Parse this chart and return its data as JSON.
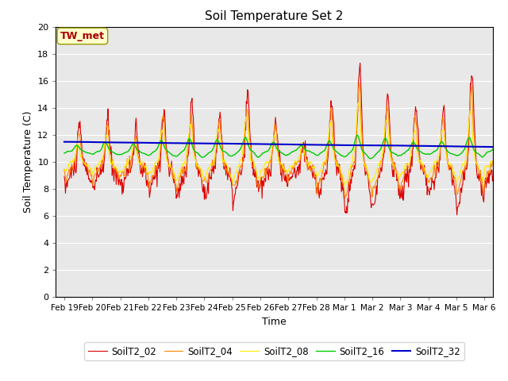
{
  "title": "Soil Temperature Set 2",
  "xlabel": "Time",
  "ylabel": "Soil Temperature (C)",
  "ylim": [
    0,
    20
  ],
  "background_color": "#ffffff",
  "plot_bg_color": "#e8e8e8",
  "annotation_text": "TW_met",
  "annotation_color": "#aa0000",
  "annotation_bg": "#ffffcc",
  "annotation_edge": "#999900",
  "series_colors": {
    "SoilT2_02": "#dd0000",
    "SoilT2_04": "#ff8800",
    "SoilT2_08": "#ffee00",
    "SoilT2_16": "#00cc00",
    "SoilT2_32": "#0000cc"
  },
  "xtick_labels": [
    "Feb 19",
    "Feb 20",
    "Feb 21",
    "Feb 22",
    "Feb 23",
    "Feb 24",
    "Feb 25",
    "Feb 26",
    "Feb 27",
    "Feb 28",
    "Mar 1",
    "Mar 2",
    "Mar 3",
    "Mar 4",
    "Mar 5",
    "Mar 6"
  ],
  "xtick_positions": [
    0,
    1,
    2,
    3,
    4,
    5,
    6,
    7,
    8,
    9,
    10,
    11,
    12,
    13,
    14,
    15
  ],
  "ytick_labels": [
    "0",
    "2",
    "4",
    "6",
    "8",
    "10",
    "12",
    "14",
    "16",
    "18",
    "20"
  ],
  "ytick_positions": [
    0,
    2,
    4,
    6,
    8,
    10,
    12,
    14,
    16,
    18,
    20
  ]
}
